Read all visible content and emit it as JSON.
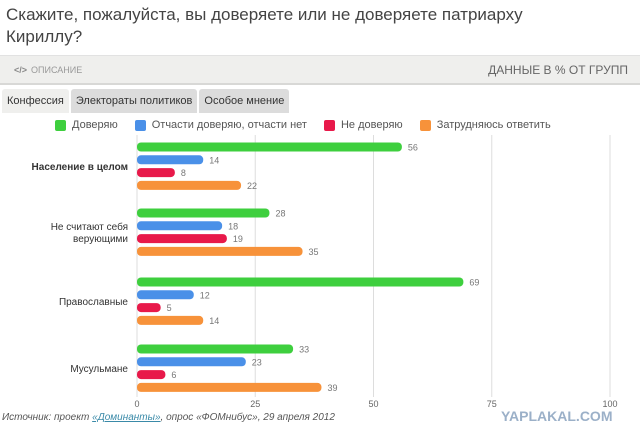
{
  "title": "Скажите, пожалуйста, вы доверяете или не доверяете патриарху Кириллу?",
  "header": {
    "description_label": "ОПИСАНИЕ",
    "units_label": "ДАННЫЕ В % ОТ ГРУПП"
  },
  "tabs": [
    {
      "label": "Конфессия",
      "active": true
    },
    {
      "label": "Электораты политиков"
    },
    {
      "label": "Особое мнение"
    }
  ],
  "source": {
    "prefix": "Источник: проект ",
    "link": "«Доминанты»",
    "suffix": ", опрос «ФОМнибус», 29 апреля 2012"
  },
  "watermark": "YAPLAKAL.COM",
  "chart_data": {
    "type": "bar",
    "orientation": "horizontal",
    "grid": true,
    "legend_position": "top",
    "categories": [
      "Население в целом",
      "Не считают себя верующими",
      "Православные",
      "Мусульмане"
    ],
    "xlim": [
      0,
      100
    ],
    "xticks": [
      "0",
      "25",
      "50",
      "75",
      "100"
    ],
    "series": [
      {
        "name": "Доверяю",
        "color": "#3ecf3e",
        "values": [
          56,
          28,
          69,
          33
        ]
      },
      {
        "name": "Отчасти доверяю, отчасти нет",
        "color": "#4a90e8",
        "values": [
          14,
          18,
          12,
          23
        ]
      },
      {
        "name": "Не доверяю",
        "color": "#e8194a",
        "values": [
          8,
          19,
          5,
          6
        ]
      },
      {
        "name": "Затрудняюсь ответить",
        "color": "#f7923a",
        "values": [
          22,
          35,
          14,
          39
        ]
      }
    ]
  }
}
